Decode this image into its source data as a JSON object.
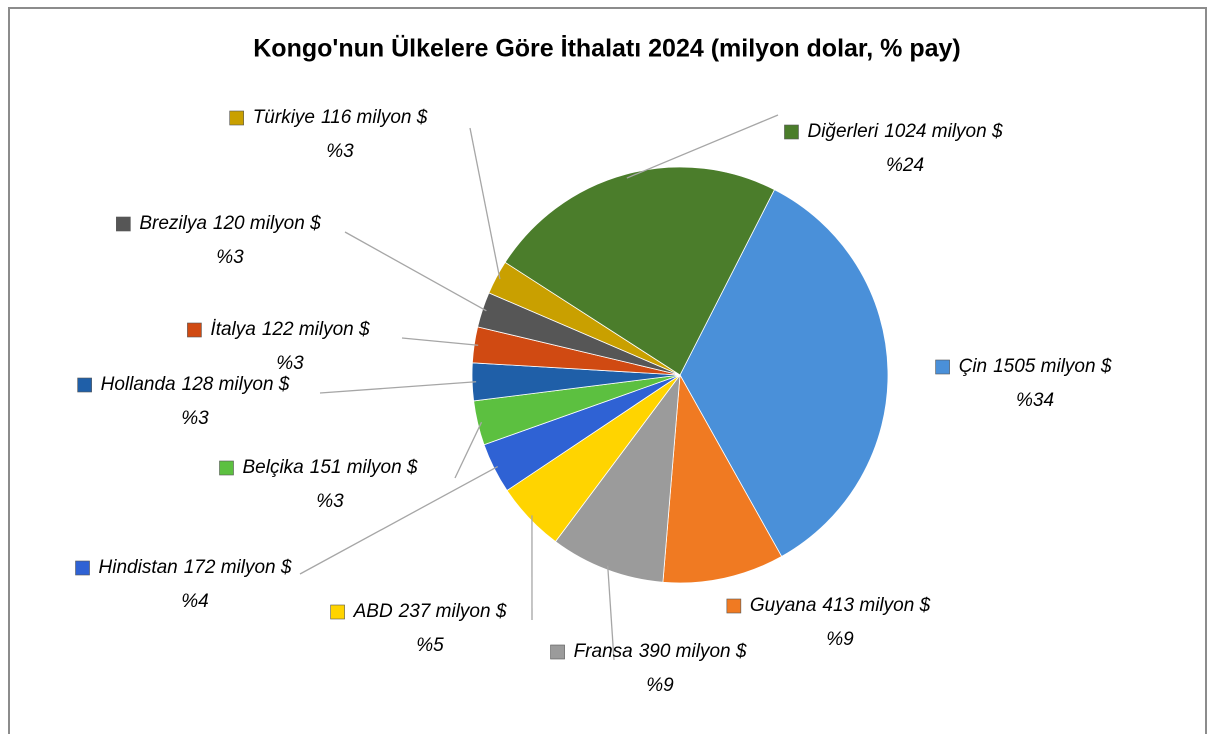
{
  "chart_data": {
    "type": "pie",
    "title": "Kongo'nun Ülkelere Göre İthalatı 2024 (milyon dolar, % pay)",
    "categories": [
      "Çin",
      "Guyana",
      "Fransa",
      "ABD",
      "Hindistan",
      "Belçika",
      "Hollanda",
      "İtalya",
      "Brezilya",
      "Türkiye",
      "Diğerleri"
    ],
    "values": [
      1505,
      413,
      390,
      237,
      172,
      151,
      128,
      122,
      120,
      116,
      1024
    ],
    "value_labels": [
      "1505 milyon $",
      "413 milyon $",
      "390 milyon $",
      "237 milyon $",
      "172 milyon $",
      "151 milyon $",
      "128 milyon $",
      "122 milyon $",
      "120 milyon $",
      "116 milyon $",
      "1024 milyon $"
    ],
    "percent_labels": [
      "%34",
      "%9",
      "%9",
      "%5",
      "%4",
      "%3",
      "%3",
      "%3",
      "%3",
      "%3",
      "%24"
    ],
    "colors": [
      "#4a90d9",
      "#f07a22",
      "#9b9b9b",
      "#ffd400",
      "#2f62d4",
      "#5cc040",
      "#1f5fa8",
      "#d04a12",
      "#565656",
      "#c9a000",
      "#4b7d2b"
    ]
  }
}
